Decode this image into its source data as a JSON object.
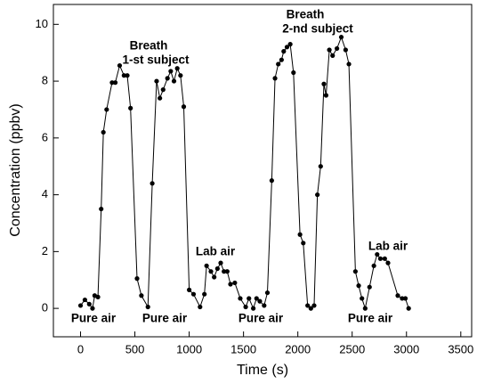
{
  "chart_data": {
    "type": "line",
    "x_label": "Time (s)",
    "y_label": "Concentration (ppbv)",
    "x": [
      0,
      40,
      80,
      110,
      130,
      160,
      190,
      210,
      240,
      290,
      320,
      360,
      400,
      430,
      460,
      520,
      560,
      620,
      660,
      700,
      730,
      760,
      800,
      830,
      860,
      890,
      920,
      950,
      1000,
      1040,
      1100,
      1140,
      1160,
      1200,
      1230,
      1260,
      1290,
      1320,
      1350,
      1380,
      1420,
      1470,
      1520,
      1550,
      1590,
      1620,
      1650,
      1690,
      1720,
      1760,
      1790,
      1820,
      1850,
      1870,
      1900,
      1930,
      1960,
      2020,
      2050,
      2090,
      2120,
      2150,
      2180,
      2210,
      2240,
      2260,
      2290,
      2320,
      2360,
      2400,
      2440,
      2470,
      2530,
      2560,
      2590,
      2620,
      2660,
      2700,
      2730,
      2760,
      2800,
      2830,
      2920,
      2960,
      2990,
      3020
    ],
    "values": [
      0.1,
      0.3,
      0.15,
      0,
      0.45,
      0.4,
      3.5,
      6.2,
      7.0,
      7.95,
      7.95,
      8.55,
      8.2,
      8.2,
      7.05,
      1.05,
      0.45,
      0.05,
      4.4,
      8.0,
      7.4,
      7.7,
      8.1,
      8.35,
      8.0,
      8.45,
      8.2,
      7.1,
      0.65,
      0.5,
      0.05,
      0.5,
      1.5,
      1.3,
      1.1,
      1.4,
      1.6,
      1.3,
      1.3,
      0.85,
      0.9,
      0.35,
      0.05,
      0.35,
      0,
      0.35,
      0.25,
      0.1,
      0.55,
      4.5,
      8.1,
      8.6,
      8.75,
      9.05,
      9.2,
      9.3,
      8.3,
      2.6,
      2.3,
      0.1,
      0,
      0.1,
      4.0,
      5.0,
      7.9,
      7.5,
      9.1,
      8.9,
      9.15,
      9.55,
      9.1,
      8.6,
      1.3,
      0.8,
      0.35,
      0,
      0.75,
      1.5,
      1.9,
      1.75,
      1.75,
      1.6,
      0.45,
      0.35,
      0.35,
      0
    ],
    "color": "#000000",
    "xlim": [
      -250,
      3600
    ],
    "xticks": [
      0,
      500,
      1000,
      1500,
      2000,
      2500,
      3000,
      3500
    ],
    "ylim": [
      -1,
      10.7
    ],
    "yticks": [
      0,
      2,
      4,
      6,
      8,
      10
    ],
    "annotations": [
      "Pure air",
      "Breath",
      "1-st subject",
      "Pure air",
      "Lab air",
      "Pure air",
      "Breath",
      "2-nd subject",
      "Pure air",
      "Lab air"
    ]
  }
}
